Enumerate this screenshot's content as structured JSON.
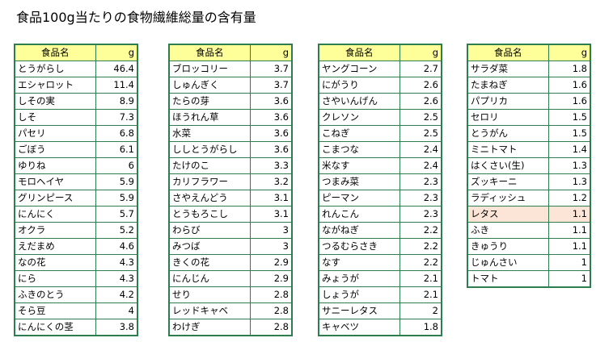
{
  "title": "食品100g当たりの食物繊維総量の含有量",
  "header": {
    "name": "食品名",
    "unit": "g"
  },
  "tables": [
    {
      "rows": [
        {
          "name": "とうがらし",
          "value": "46.4"
        },
        {
          "name": "エシャロット",
          "value": "11.4"
        },
        {
          "name": "しその実",
          "value": "8.9"
        },
        {
          "name": "しそ",
          "value": "7.3"
        },
        {
          "name": "パセリ",
          "value": "6.8"
        },
        {
          "name": "ごぼう",
          "value": "6.1"
        },
        {
          "name": "ゆりね",
          "value": "6"
        },
        {
          "name": "モロヘイヤ",
          "value": "5.9"
        },
        {
          "name": "グリンピース",
          "value": "5.9"
        },
        {
          "name": "にんにく",
          "value": "5.7"
        },
        {
          "name": "オクラ",
          "value": "5.2"
        },
        {
          "name": "えだまめ",
          "value": "4.6"
        },
        {
          "name": "なの花",
          "value": "4.3"
        },
        {
          "name": "にら",
          "value": "4.3"
        },
        {
          "name": "ふきのとう",
          "value": "4.2"
        },
        {
          "name": "そら豆",
          "value": "4"
        },
        {
          "name": "にんにくの茎",
          "value": "3.8"
        }
      ]
    },
    {
      "rows": [
        {
          "name": "ブロッコリー",
          "value": "3.7"
        },
        {
          "name": "しゅんぎく",
          "value": "3.7"
        },
        {
          "name": "たらの芽",
          "value": "3.6"
        },
        {
          "name": "ほうれん草",
          "value": "3.6"
        },
        {
          "name": "水菜",
          "value": "3.6"
        },
        {
          "name": "ししとうがらし",
          "value": "3.6"
        },
        {
          "name": "たけのこ",
          "value": "3.3"
        },
        {
          "name": "カリフラワー",
          "value": "3.2"
        },
        {
          "name": "さやえんどう",
          "value": "3.1"
        },
        {
          "name": "とうもろこし",
          "value": "3.1"
        },
        {
          "name": "わらび",
          "value": "3"
        },
        {
          "name": "みつば",
          "value": "3"
        },
        {
          "name": "きくの花",
          "value": "2.9"
        },
        {
          "name": "にんじん",
          "value": "2.9"
        },
        {
          "name": "せり",
          "value": "2.8"
        },
        {
          "name": "レッドキャベ",
          "value": "2.8"
        },
        {
          "name": "わけぎ",
          "value": "2.8"
        }
      ]
    },
    {
      "rows": [
        {
          "name": "ヤングコーン",
          "value": "2.7"
        },
        {
          "name": "にがうり",
          "value": "2.6"
        },
        {
          "name": "さやいんげん",
          "value": "2.6"
        },
        {
          "name": "クレソン",
          "value": "2.5"
        },
        {
          "name": "こねぎ",
          "value": "2.5"
        },
        {
          "name": "こまつな",
          "value": "2.4"
        },
        {
          "name": "米なす",
          "value": "2.4"
        },
        {
          "name": "つまみ菜",
          "value": "2.3"
        },
        {
          "name": "ピーマン",
          "value": "2.3"
        },
        {
          "name": "れんこん",
          "value": "2.3"
        },
        {
          "name": "ながねぎ",
          "value": "2.2"
        },
        {
          "name": "つるむらさき",
          "value": "2.2"
        },
        {
          "name": "なす",
          "value": "2.2"
        },
        {
          "name": "みょうが",
          "value": "2.1"
        },
        {
          "name": "しょうが",
          "value": "2.1"
        },
        {
          "name": "サニーレタス",
          "value": "2"
        },
        {
          "name": "キャベツ",
          "value": "1.8"
        }
      ]
    },
    {
      "rows": [
        {
          "name": "サラダ菜",
          "value": "1.8"
        },
        {
          "name": "たまねぎ",
          "value": "1.6"
        },
        {
          "name": "パプリカ",
          "value": "1.6"
        },
        {
          "name": "セロリ",
          "value": "1.5"
        },
        {
          "name": "とうがん",
          "value": "1.5"
        },
        {
          "name": "ミニトマト",
          "value": "1.4"
        },
        {
          "name": "はくさい(生)",
          "value": "1.3"
        },
        {
          "name": "ズッキーニ",
          "value": "1.3"
        },
        {
          "name": "ラディッシュ",
          "value": "1.2"
        },
        {
          "name": "レタス",
          "value": "1.1",
          "highlight": true
        },
        {
          "name": "ふき",
          "value": "1.1"
        },
        {
          "name": "きゅうり",
          "value": "1.1"
        },
        {
          "name": "じゅんさい",
          "value": "1"
        },
        {
          "name": "トマト",
          "value": "1"
        }
      ]
    }
  ]
}
